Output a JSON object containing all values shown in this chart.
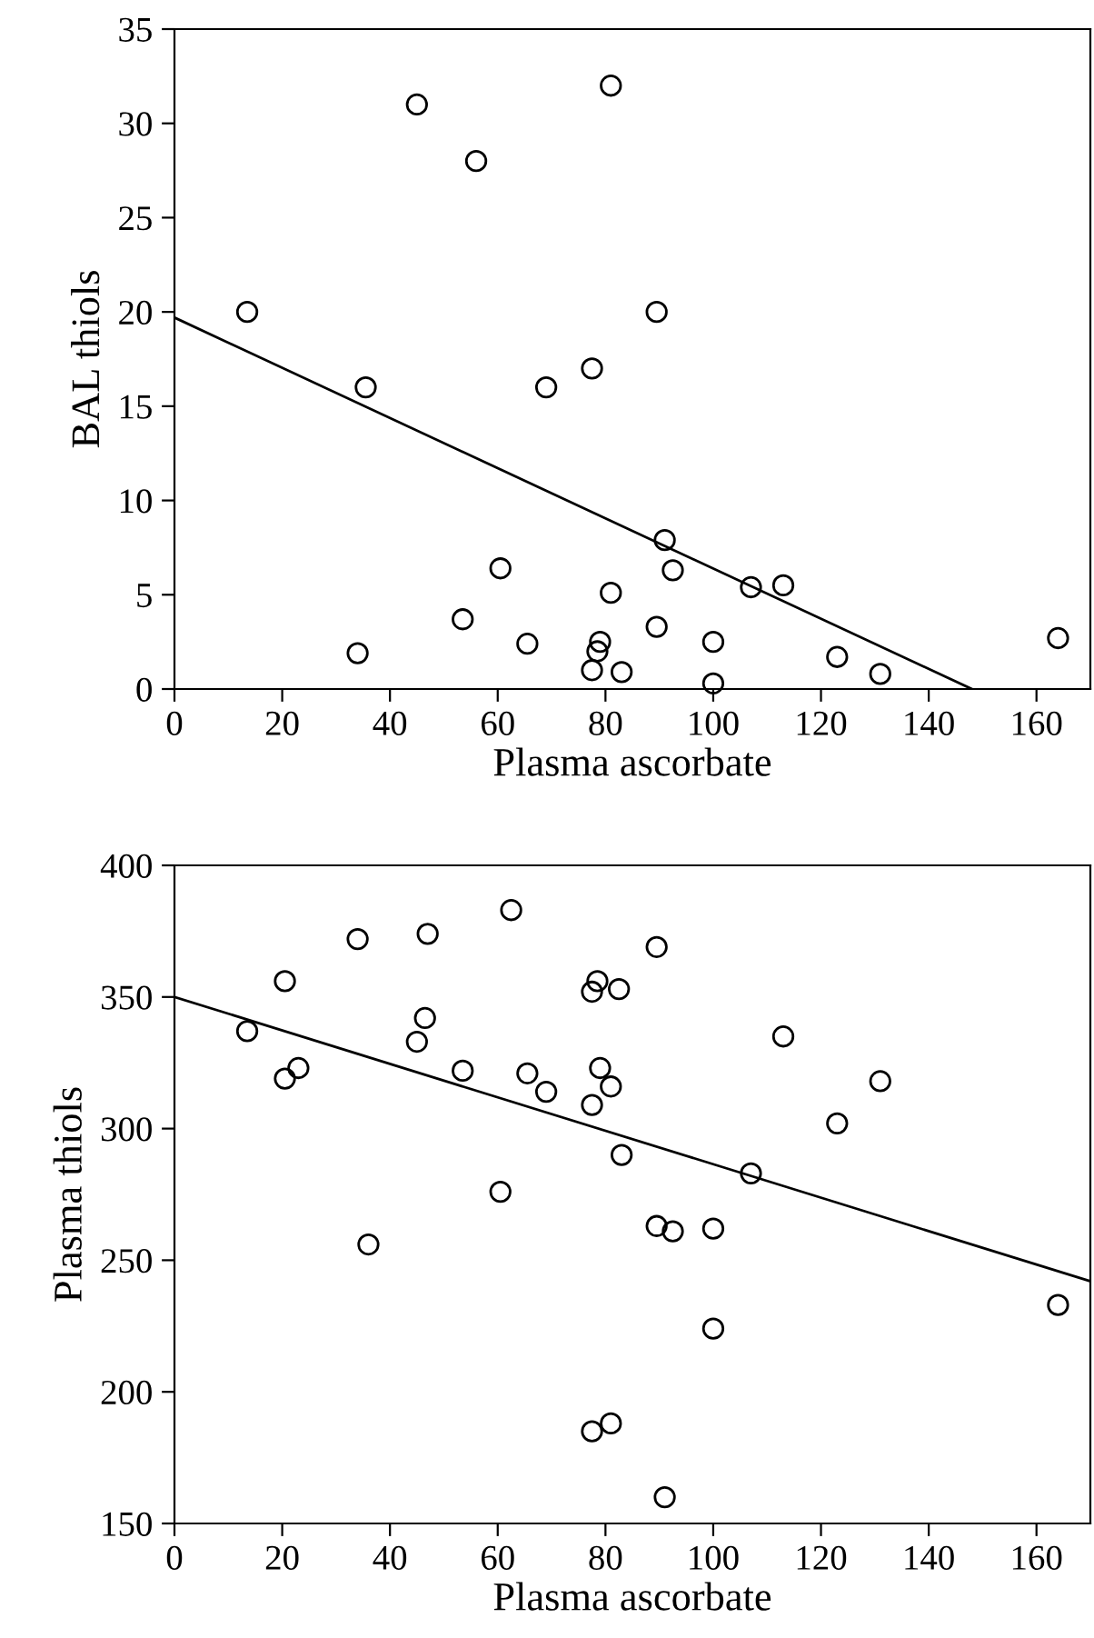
{
  "chart_data": [
    {
      "type": "scatter",
      "xlabel": "Plasma ascorbate",
      "ylabel": "BAL thiols",
      "xlim": [
        0,
        170
      ],
      "ylim": [
        0,
        35
      ],
      "xticks": [
        0,
        20,
        40,
        60,
        80,
        100,
        120,
        140,
        160
      ],
      "yticks": [
        0,
        5,
        10,
        15,
        20,
        25,
        30,
        35
      ],
      "grid": false,
      "series": [
        {
          "marker": "circle",
          "color": "#000000",
          "x": [
            13.5,
            35.5,
            34,
            45,
            56,
            53.5,
            60.5,
            65.5,
            69,
            77.5,
            77.5,
            79,
            78.5,
            81,
            81,
            83,
            89.5,
            89.5,
            91,
            92.5,
            100,
            100,
            107,
            113,
            123,
            131,
            164
          ],
          "values": [
            20,
            16,
            1.9,
            31,
            28,
            3.7,
            6.4,
            2.4,
            16,
            17,
            1,
            2.5,
            2,
            32,
            5.1,
            0.9,
            20,
            3.3,
            7.9,
            6.3,
            2.5,
            0.3,
            5.4,
            5.5,
            1.7,
            0.8,
            2.7
          ]
        },
        {
          "type": "line",
          "marker": "none",
          "color": "#000000",
          "x": [
            0,
            148
          ],
          "values": [
            19.7,
            0
          ]
        }
      ]
    },
    {
      "type": "scatter",
      "xlabel": "Plasma ascorbate",
      "ylabel": "Plasma thiols",
      "xlim": [
        0,
        170
      ],
      "ylim": [
        150,
        400
      ],
      "xticks": [
        0,
        20,
        40,
        60,
        80,
        100,
        120,
        140,
        160
      ],
      "yticks": [
        150,
        200,
        250,
        300,
        350,
        400
      ],
      "grid": false,
      "series": [
        {
          "marker": "circle",
          "color": "#000000",
          "x": [
            13.5,
            20.5,
            20.5,
            23,
            34,
            36,
            45,
            46.5,
            47,
            53.5,
            60.5,
            62.5,
            65.5,
            69,
            77.5,
            78.5,
            77.5,
            79,
            81,
            82.5,
            83,
            89.5,
            89.5,
            92.5,
            100,
            100,
            107,
            113,
            123,
            131,
            164,
            77.5,
            81,
            91
          ],
          "values": [
            337,
            356,
            319,
            323,
            372,
            256,
            333,
            342,
            374,
            322,
            276,
            383,
            321,
            314,
            352,
            356,
            309,
            323,
            316,
            353,
            290,
            369,
            263,
            261,
            262,
            224,
            283,
            335,
            302,
            318,
            233,
            185,
            188,
            160
          ]
        },
        {
          "type": "line",
          "marker": "none",
          "color": "#000000",
          "x": [
            0,
            170
          ],
          "values": [
            350,
            242
          ]
        }
      ]
    }
  ]
}
